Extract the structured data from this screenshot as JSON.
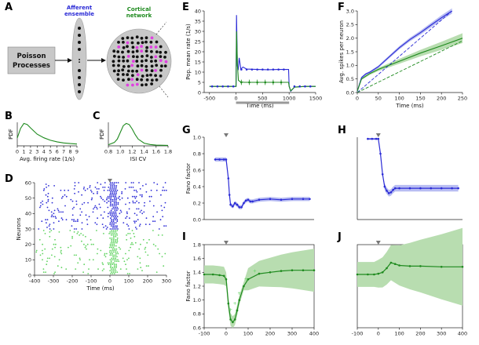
{
  "panel_labels": [
    "A",
    "B",
    "C",
    "D",
    "E",
    "F",
    "G",
    "H",
    "I",
    "J"
  ],
  "colors": {
    "blue": "#2b2bd6",
    "green": "#1e8a1e",
    "light_green": "#5fd35f",
    "pink": "#e040e0",
    "band_blue": "#b8bdf2",
    "band_green": "#b8ddb0",
    "gray": "#bbbbbb"
  },
  "diagram": {
    "poisson_label_line1": "Poisson",
    "poisson_label_line2": "Processes",
    "afferent_line1": "Afferent",
    "afferent_line2": "ensemble",
    "cortical_line1": "Cortical",
    "cortical_line2": "network",
    "ellipsis": ":"
  },
  "chart_data": [
    {
      "id": "B",
      "type": "line",
      "title": "",
      "xlabel": "Avg. firing rate (1/s)",
      "ylabel": "PDF",
      "xlim": [
        0,
        9
      ],
      "xticks": [
        0,
        1,
        2,
        3,
        4,
        5,
        6,
        7,
        8,
        9
      ],
      "x": [
        0,
        0.5,
        1,
        1.5,
        2,
        2.5,
        3,
        4,
        5,
        6,
        7,
        8,
        9
      ],
      "y": [
        0.35,
        0.78,
        1.0,
        0.95,
        0.8,
        0.66,
        0.52,
        0.36,
        0.25,
        0.18,
        0.13,
        0.1,
        0.08
      ]
    },
    {
      "id": "C",
      "type": "line",
      "title": "",
      "xlabel": "ISI CV",
      "ylabel": "PDF",
      "xlim": [
        0.8,
        1.8
      ],
      "xticks": [
        "0.8",
        "1.0",
        "1.2",
        "1.4",
        "1.6",
        "1.8"
      ],
      "x": [
        0.8,
        0.9,
        0.95,
        1.0,
        1.05,
        1.1,
        1.15,
        1.2,
        1.25,
        1.3,
        1.4,
        1.5,
        1.6,
        1.8
      ],
      "y": [
        0.05,
        0.15,
        0.3,
        0.6,
        0.9,
        1.0,
        0.95,
        0.75,
        0.5,
        0.3,
        0.12,
        0.06,
        0.03,
        0.02
      ]
    },
    {
      "id": "D",
      "type": "scatter",
      "title": "",
      "xlabel": "Time (ms)",
      "ylabel": "Neurons",
      "xlim": [
        -400,
        300
      ],
      "ylim": [
        0,
        60
      ],
      "xticks": [
        -400,
        -300,
        -200,
        -100,
        0,
        100,
        200,
        300
      ],
      "yticks": [
        0,
        10,
        20,
        30,
        40,
        50,
        60
      ],
      "stimulus_marker_x": 0,
      "series": [
        {
          "name": "afferent (blue)",
          "neuron_range": [
            30,
            60
          ]
        },
        {
          "name": "cortical (green)",
          "neuron_range": [
            0,
            30
          ]
        }
      ]
    },
    {
      "id": "E",
      "type": "line",
      "title": "",
      "xlabel": "Time (ms)",
      "ylabel": "Pop. mean rate (1/s)",
      "xlim": [
        -600,
        1500
      ],
      "ylim": [
        0,
        40
      ],
      "xticks": [
        -500,
        0,
        500,
        1000,
        1500
      ],
      "yticks": [
        0,
        5,
        10,
        15,
        20,
        25,
        30,
        35,
        40
      ],
      "stimulus_interval": [
        0,
        1000
      ],
      "series": [
        {
          "name": "blue",
          "x": [
            -500,
            -10,
            0,
            10,
            25,
            40,
            60,
            90,
            130,
            200,
            400,
            600,
            800,
            990,
            1000,
            1030,
            1060,
            1100,
            1300,
            1500
          ],
          "y": [
            3,
            3,
            3,
            38,
            13,
            11,
            17,
            11.5,
            12.5,
            11.5,
            11.3,
            11.2,
            11.3,
            11.3,
            3.2,
            0.6,
            1.5,
            2.7,
            3,
            3
          ]
        },
        {
          "name": "green",
          "x": [
            -500,
            -10,
            0,
            10,
            25,
            45,
            80,
            150,
            400,
            700,
            990,
            1000,
            1030,
            1100,
            1300,
            1500
          ],
          "y": [
            3,
            3,
            3,
            30,
            14,
            6,
            5.3,
            5,
            5,
            5,
            5,
            3,
            0.8,
            2.6,
            3,
            3
          ]
        }
      ]
    },
    {
      "id": "F",
      "type": "line",
      "title": "",
      "xlabel": "Time (ms)",
      "ylabel": "Avg. spikes per neuron",
      "xlim": [
        0,
        250
      ],
      "ylim": [
        0,
        3.0
      ],
      "xticks": [
        0,
        50,
        100,
        150,
        200,
        250
      ],
      "yticks": [
        "0.0",
        "0.5",
        "1.0",
        "1.5",
        "2.0",
        "2.5",
        "3.0"
      ],
      "series": [
        {
          "name": "blue",
          "x": [
            0,
            10,
            20,
            30,
            50,
            75,
            100,
            125,
            150,
            175,
            200,
            225
          ],
          "y": [
            0.05,
            0.55,
            0.68,
            0.75,
            0.95,
            1.3,
            1.65,
            1.95,
            2.2,
            2.48,
            2.75,
            3.0
          ]
        },
        {
          "name": "blue dashed",
          "x": [
            0,
            225
          ],
          "y": [
            0,
            3.0
          ]
        },
        {
          "name": "green",
          "x": [
            0,
            10,
            20,
            30,
            50,
            100,
            150,
            200,
            250
          ],
          "y": [
            0.05,
            0.5,
            0.6,
            0.7,
            0.85,
            1.15,
            1.45,
            1.72,
            2.0
          ]
        },
        {
          "name": "green dashed",
          "x": [
            0,
            250
          ],
          "y": [
            0,
            1.9
          ]
        }
      ]
    },
    {
      "id": "G",
      "type": "line",
      "title": "",
      "xlabel": "",
      "ylabel": "Fano factor",
      "xlim": [
        -100,
        400
      ],
      "ylim": [
        0,
        1.0
      ],
      "yticks": [
        "0.0",
        "0.2",
        "0.4",
        "0.6",
        "0.8",
        "1.0"
      ],
      "stimulus_marker_x": 0,
      "x": [
        -50,
        -30,
        -10,
        0,
        10,
        15,
        20,
        30,
        40,
        50,
        60,
        70,
        80,
        90,
        100,
        110,
        120,
        150,
        200,
        250,
        300,
        350,
        380
      ],
      "y": [
        0.73,
        0.73,
        0.73,
        0.73,
        0.5,
        0.3,
        0.18,
        0.16,
        0.2,
        0.18,
        0.15,
        0.15,
        0.2,
        0.23,
        0.24,
        0.22,
        0.22,
        0.24,
        0.25,
        0.24,
        0.25,
        0.25,
        0.25
      ]
    },
    {
      "id": "H",
      "type": "line",
      "title": "",
      "xlabel": "",
      "ylabel": "",
      "xlim": [
        -100,
        400
      ],
      "ylim": [
        0,
        1.0
      ],
      "stimulus_marker_x": 0,
      "x": [
        -50,
        -30,
        -10,
        0,
        10,
        20,
        30,
        40,
        50,
        60,
        70,
        80,
        100,
        150,
        200,
        250,
        300,
        350,
        380
      ],
      "y": [
        0.98,
        0.98,
        0.98,
        0.98,
        0.8,
        0.55,
        0.4,
        0.35,
        0.32,
        0.33,
        0.36,
        0.38,
        0.38,
        0.38,
        0.38,
        0.38,
        0.38,
        0.38,
        0.38
      ]
    },
    {
      "id": "I",
      "type": "line",
      "title": "",
      "xlabel": "",
      "ylabel": "Fano factor",
      "xlim": [
        -100,
        400
      ],
      "ylim": [
        0.6,
        1.8
      ],
      "xticks": [
        -100,
        0,
        100,
        200,
        300,
        400
      ],
      "yticks": [
        "0.6",
        "0.8",
        "1.0",
        "1.2",
        "1.4",
        "1.6",
        "1.8"
      ],
      "stimulus_marker_x": 0,
      "x": [
        -100,
        -60,
        -30,
        -10,
        0,
        10,
        20,
        30,
        40,
        50,
        60,
        80,
        100,
        150,
        200,
        250,
        300,
        350,
        400
      ],
      "y": [
        1.37,
        1.37,
        1.36,
        1.35,
        1.3,
        0.95,
        0.72,
        0.68,
        0.72,
        0.85,
        1.0,
        1.2,
        1.3,
        1.38,
        1.4,
        1.42,
        1.43,
        1.43,
        1.43
      ]
    },
    {
      "id": "J",
      "type": "line",
      "title": "",
      "xlabel": "",
      "ylabel": "",
      "xlim": [
        -100,
        400
      ],
      "ylim": [
        0.6,
        1.8
      ],
      "xticks": [
        -100,
        0,
        100,
        200,
        300,
        400
      ],
      "stimulus_marker_x": 0,
      "x": [
        -100,
        -50,
        -20,
        0,
        20,
        40,
        60,
        80,
        100,
        150,
        200,
        300,
        400
      ],
      "y": [
        1.37,
        1.37,
        1.37,
        1.38,
        1.4,
        1.46,
        1.54,
        1.52,
        1.5,
        1.49,
        1.49,
        1.48,
        1.48
      ]
    }
  ]
}
